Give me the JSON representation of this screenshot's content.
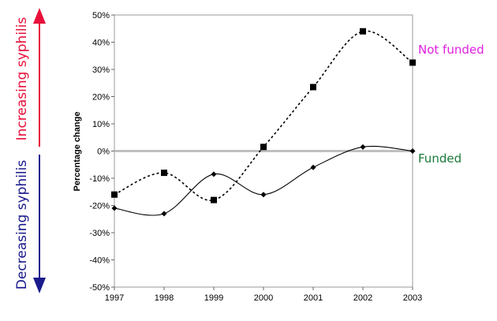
{
  "chart_data": {
    "type": "line",
    "title": "",
    "xlabel": "",
    "ylabel": "Percentage change",
    "x": [
      1997,
      1998,
      1999,
      2000,
      2001,
      2002,
      2003
    ],
    "x_tick_labels": [
      "1997",
      "1998",
      "1999",
      "2000",
      "2001",
      "2002",
      "2003"
    ],
    "ylim": [
      -50,
      50
    ],
    "y_ticks": [
      -50,
      -40,
      -30,
      -20,
      -10,
      0,
      10,
      20,
      30,
      40,
      50
    ],
    "y_tick_labels": [
      "-50%",
      "-40%",
      "-30%",
      "-20%",
      "-10%",
      "0%",
      "10%",
      "20%",
      "30%",
      "40%",
      "50%"
    ],
    "grid": false,
    "reference_line": {
      "y": 0,
      "color": "#bfbfbf"
    },
    "series": [
      {
        "name": "Not funded",
        "values": [
          -16,
          -8,
          -18,
          1.5,
          23.5,
          44,
          32.5
        ],
        "marker": "square",
        "line_style": "dotted",
        "label_color": "#e020e0"
      },
      {
        "name": "Funded",
        "values": [
          -21,
          -23,
          -8.5,
          -16,
          -6,
          1.5,
          0
        ],
        "marker": "diamond",
        "line_style": "solid",
        "label_color": "#1a7a3a"
      }
    ],
    "side_annotations": {
      "up": {
        "text": "Increasing syphilis",
        "color": "#e8103a"
      },
      "down": {
        "text": "Decreasing syphilis",
        "color": "#1a1a8c"
      }
    }
  }
}
